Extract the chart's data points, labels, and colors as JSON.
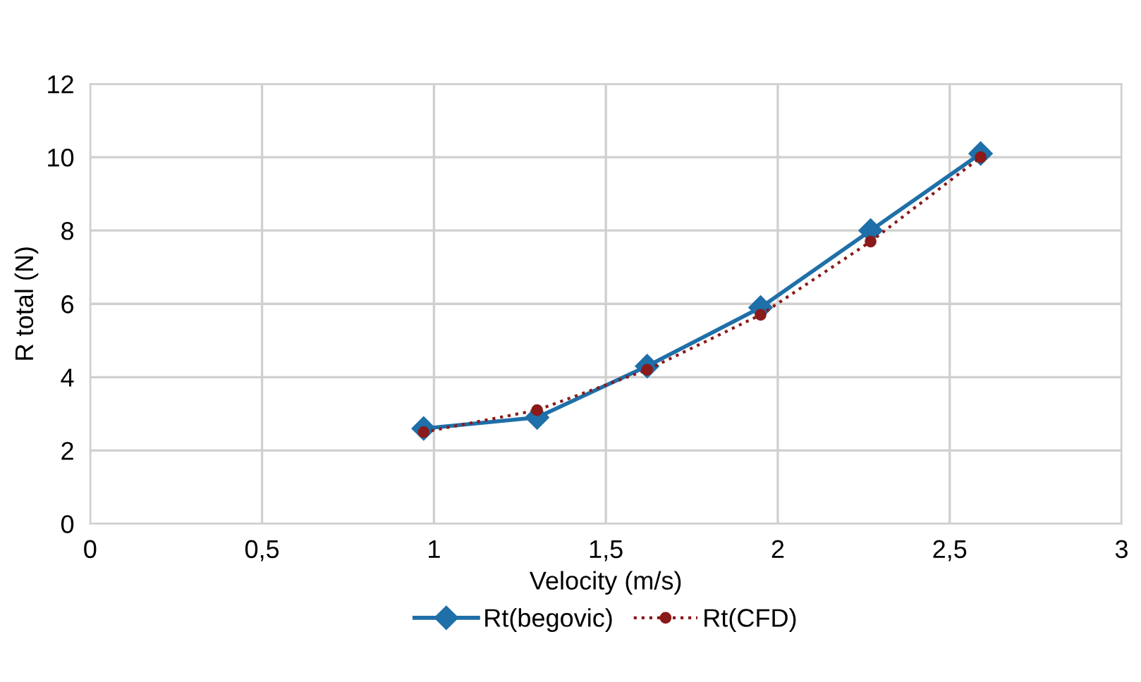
{
  "chart_data": {
    "type": "line",
    "xlabel": "Velocity (m/s)",
    "ylabel": "R total (N)",
    "x": [
      0.97,
      1.3,
      1.62,
      1.95,
      2.27,
      2.59
    ],
    "series": [
      {
        "name": "Rt(begovic)",
        "color": "#1f6fa8",
        "marker": "diamond",
        "line_style": "solid",
        "values": [
          2.6,
          2.9,
          4.3,
          5.9,
          8.0,
          10.1
        ]
      },
      {
        "name": "Rt(CFD)",
        "color": "#8b1a1a",
        "marker": "circle",
        "line_style": "dotted",
        "values": [
          2.5,
          3.1,
          4.2,
          5.7,
          7.7,
          10.0
        ]
      }
    ],
    "xlim": [
      0,
      3
    ],
    "xticks": [
      0,
      {
        "value": 0.5,
        "label": "0,5"
      },
      1,
      {
        "value": 1.5,
        "label": "1,5"
      },
      2,
      {
        "value": 2.5,
        "label": "2,5"
      },
      3
    ],
    "ylim": [
      0,
      12
    ],
    "yticks": [
      0,
      2,
      4,
      6,
      8,
      10,
      12
    ],
    "grid": true,
    "legend": "bottom"
  }
}
